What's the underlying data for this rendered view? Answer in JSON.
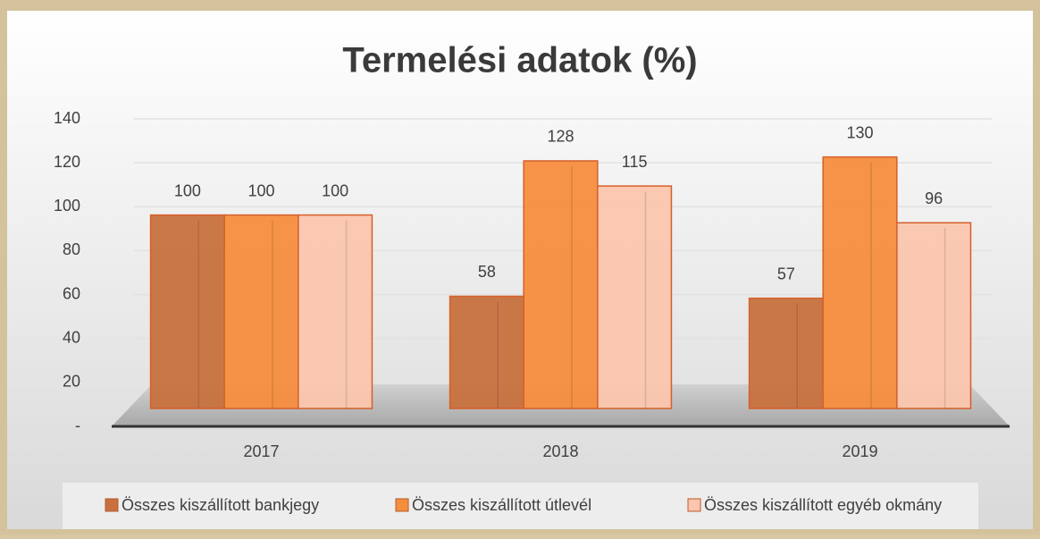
{
  "chart_data": {
    "type": "bar",
    "title": "Termelési adatok (%)",
    "categories": [
      "2017",
      "2018",
      "2019"
    ],
    "series": [
      {
        "name": "Összes kiszállított bankjegy",
        "color": "#c8713f",
        "values": [
          100,
          58,
          57
        ]
      },
      {
        "name": "Összes kiszállított útlevél",
        "color": "#f58d3e",
        "values": [
          100,
          128,
          130
        ]
      },
      {
        "name": "Összes kiszállított egyéb okmány",
        "color": "#fbc5ae",
        "values": [
          100,
          115,
          96
        ]
      }
    ],
    "ylim": [
      0,
      140
    ],
    "yticks": [
      {
        "value": 0,
        "label": "-"
      },
      20,
      40,
      60,
      80,
      100,
      120,
      140
    ],
    "grid": true,
    "legend": "bottom"
  }
}
